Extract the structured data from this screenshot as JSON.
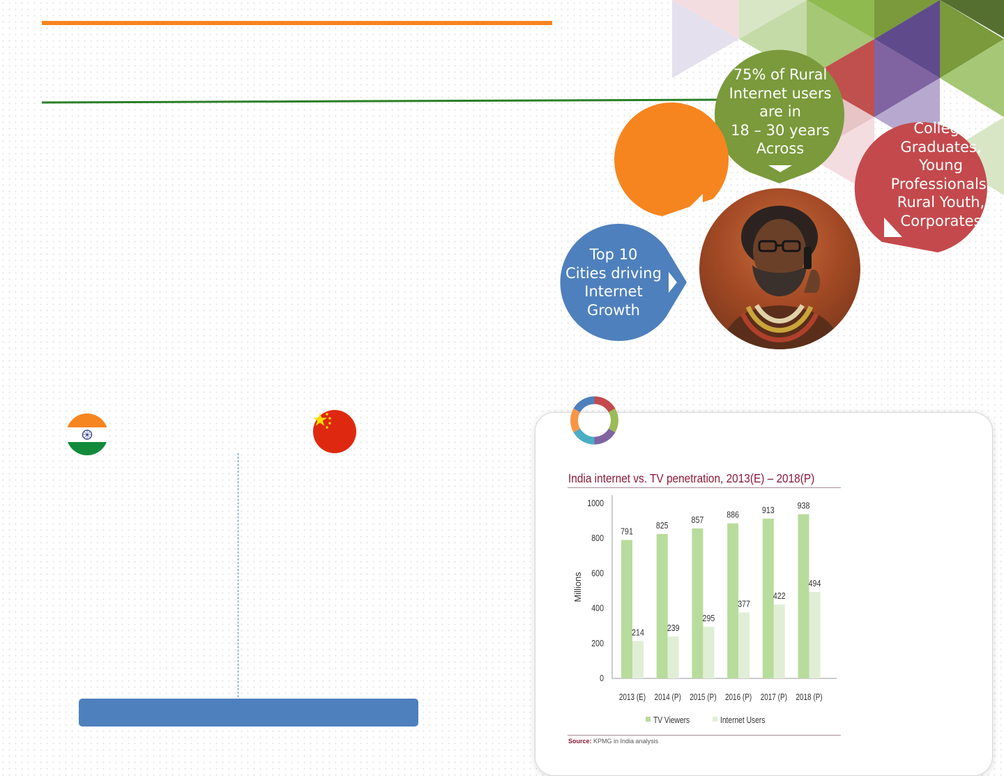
{
  "bubbles": {
    "rural": [
      "75% of Rural",
      "Internet users",
      "are in",
      "18 – 30 years",
      "Across"
    ],
    "segments": [
      "College",
      "Graduates,",
      "Young",
      "Professionals,",
      "Rural Youth,",
      "Corporates"
    ],
    "cities": [
      "Top 10",
      "Cities driving",
      "Internet",
      "Growth"
    ]
  },
  "flags": {
    "left": "india-flag",
    "right": "china-flag"
  },
  "colors": {
    "orange": "#f7851f",
    "green_rule": "#2a7f27",
    "bubble_green": "#7a9a3b",
    "bubble_red": "#c4494c",
    "bubble_blue": "#4e80bd",
    "tv_bar": "#b8dc9c",
    "internet_bar": "#e1eed6"
  },
  "chart_data": {
    "type": "bar",
    "title": "India internet vs. TV penetration, 2013(E) – 2018(P)",
    "xlabel": "",
    "ylabel": "Millions",
    "ylim": [
      0,
      1000
    ],
    "yticks": [
      "0",
      "200",
      "400",
      "600",
      "800",
      "1000"
    ],
    "categories": [
      "2013 (E)",
      "2014 (P)",
      "2015 (P)",
      "2016 (P)",
      "2017 (P)",
      "2018 (P)"
    ],
    "series": [
      {
        "name": "TV Viewers",
        "values": [
          791,
          825,
          857,
          886,
          913,
          938
        ]
      },
      {
        "name": "Internet Users",
        "values": [
          214,
          239,
          295,
          377,
          422,
          494
        ]
      }
    ],
    "legend": "bottom",
    "grid": false,
    "source_label": "Source:",
    "source_text": "KPMG in India analysis"
  }
}
